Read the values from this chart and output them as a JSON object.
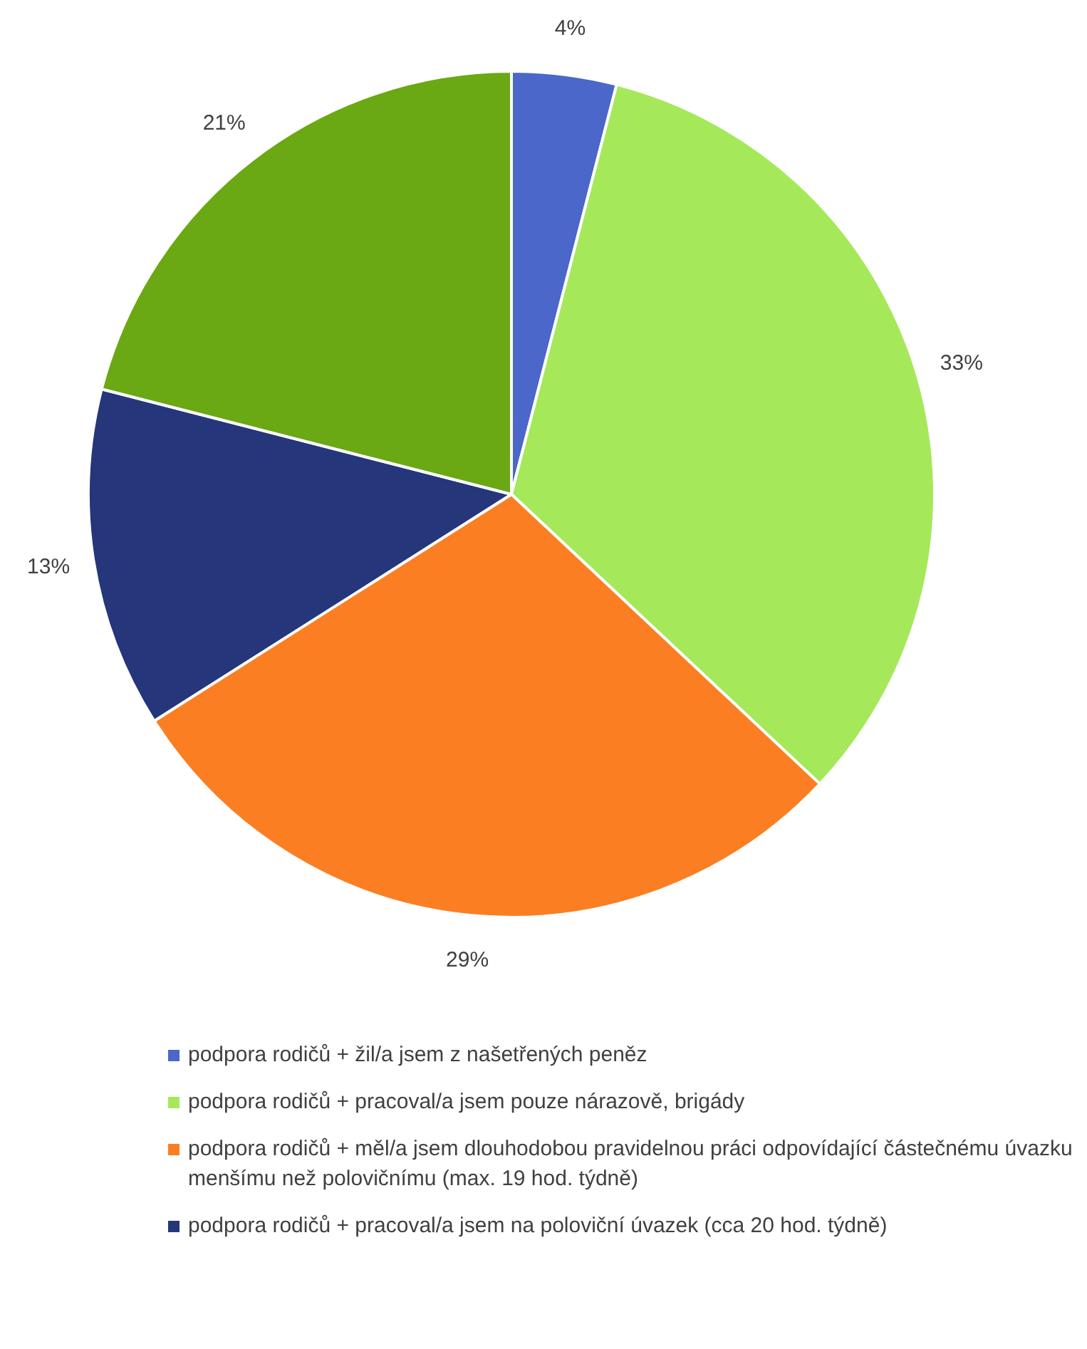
{
  "chart_data": {
    "type": "pie",
    "categories": [
      "podpora rodičů + žil/a jsem z našetřených peněz",
      "podpora rodičů + pracoval/a jsem pouze nárazově, brigády",
      "podpora rodičů + měl/a jsem dlouhodobou pravidelnou práci odpovídající částečnému úvazku menšímu než polovičnímu (max. 19 hod. týdně)",
      "podpora rodičů + pracoval/a jsem na poloviční úvazek (cca 20 hod. týdně)",
      null
    ],
    "values": [
      4,
      33,
      29,
      13,
      21
    ],
    "value_labels": [
      "4%",
      "33%",
      "29%",
      "13%",
      "21%"
    ],
    "colors": [
      "#4a67c9",
      "#a5e85a",
      "#fb7f22",
      "#25367a",
      "#6aa814"
    ],
    "legend": "bottom"
  }
}
